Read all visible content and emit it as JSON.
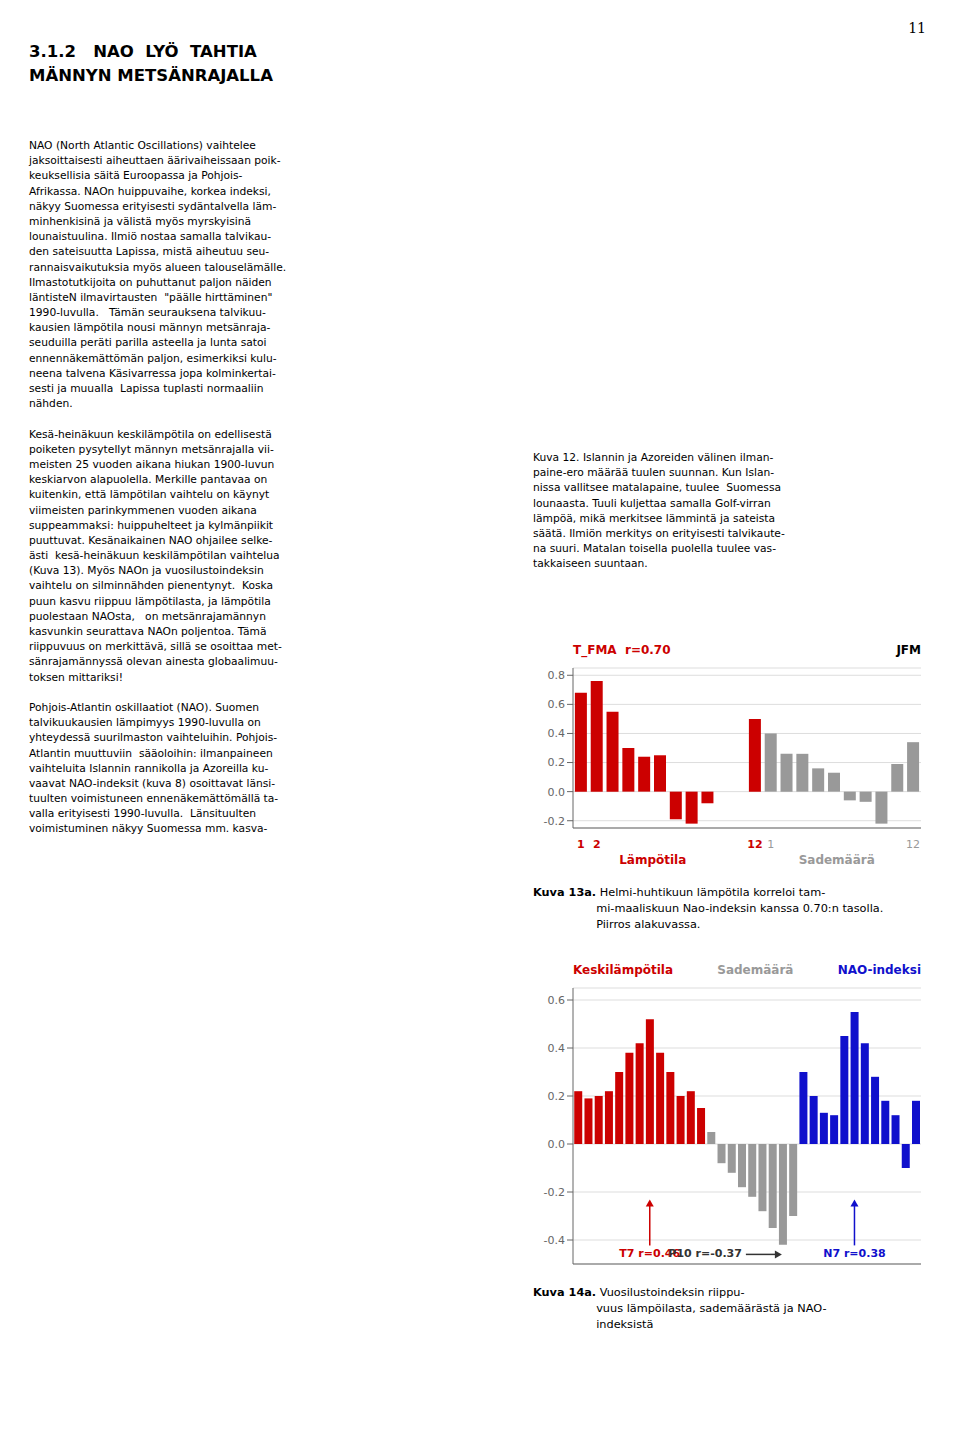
{
  "page_number": "11",
  "title": "3.1.2   NAO  LYÖ  TAHTIA\nMÄNNYN METSÄNRAJALLA",
  "body_text": "NAO (North Atlantic Oscillations) vaihtelee\njaksoittaisesti aiheuttaen äärivaiheissaan poik-\nkeuksellisia säitä Euroopassa ja Pohjois-\nAfrikassa. NAOn huippuvaihe, korkea indeksi,\nnäkyy Suomessa erityisesti sydäntalvella läm-\nminhenkisinä ja välistä myös myrskyisinä\nlounaistuulina. Ilmiö nostaa samalla talvikau-\nden sateisuutta Lapissa, mistä aiheutuu seu-\nrannaisvaikutuksia myös alueen talouselämälle.\nIlmastotutkijoita on puhuttanut paljon näiden\nläntisteN ilmavirtausten  \"päälle hirttäminen\"\n1990-luvulla.   Tämän seurauksena talvikuu-\nkausien lämpötila nousi männyn metsänraja-\nseuduilla peräti parilla asteella ja lunta satoi\nennennäkemättömän paljon, esimerkiksi kulu-\nneena talvena Käsivarressa jopa kolminkertai-\nsesti ja muualla  Lapissa tuplasti normaaliin\nnähden.\n\nKesä-heinäkuun keskilämpötila on edellisestä\npoiketen pysytellyt männyn metsänrajalla vii-\nmeisten 25 vuoden aikana hiukan 1900-luvun\nkeskiarvon alapuolella. Merkille pantavaa on\nkuitenkin, että lämpötilan vaihtelu on käynyt\nviimeisten parinkymmenen vuoden aikana\nsuppeammaksi: huippuhelteet ja kylmänpiikit\npuuttuvat. Kesänaikainen NAO ohjailee selke-\nästi  kesä-heinäkuun keskilämpötilan vaihtelua\n(Kuva 13). Myös NAOn ja vuosilustoindeksin\nvaihtelu on silminnähden pienentynyt.  Koska\npuun kasvu riippuu lämpötilasta, ja lämpötila\npuolestaan NAOsta,   on metsänrajamännyn\nkasvunkin seurattava NAOn poljentoa. Tämä\nriippuvuus on merkittävä, sillä se osoittaa met-\nsänrajamännyssä olevan ainesta globaalimuu-\ntoksen mittariksi!\n\nPohjois-Atlantin oskillaatiot (NAO). Suomen\ntalvikuukausien lämpimyys 1990-luvulla on\nyhteydessä suurilmaston vaihteluihin. Pohjois-\nAtlantin muuttuviin  sääoloihin: ilmanpaineen\nvaihteluita Islannin rannikolla ja Azoreilla ku-\nvaavat NAO-indeksit (kuva 8) osoittavat länsi-\ntuulten voimistuneen ennenäkemättömällä ta-\nvalla erityisesti 1990-luvulla.  Länsituulten\nvoimistuminen näkyy Suomessa mm. kasva-",
  "caption": "Kuva 12. Islannin ja Azoreiden välinen ilman-\npaine-ero määrää tuulen suunnan. Kun Islan-\nnissa vallitsee matalapaine, tuulee  Suomessa\nlounaasta. Tuuli kuljettaa samalla Golf-virran\nlämpöä, mikä merkitsee lämmintä ja sateista\nsäätä. Ilmiön merkitys on erityisesti talvikaute-\nna suuri. Matalan toisella puolella tuulee vas-\ntakkaiseen suuntaan.",
  "chart_data": [
    {
      "type": "bar",
      "categories": [
        "1",
        "2",
        null,
        null,
        null,
        null,
        null,
        null,
        null,
        null,
        null,
        "12",
        "1",
        null,
        null,
        null,
        null,
        null,
        null,
        null,
        null,
        "12"
      ],
      "series": [
        {
          "name": "Lämpötila",
          "color": "#cc0000",
          "values": [
            0.68,
            0.76,
            0.55,
            0.3,
            0.24,
            0.25,
            -0.19,
            -0.22,
            -0.08,
            null,
            null,
            0.5,
            null,
            null,
            null,
            null,
            null,
            null,
            null,
            null,
            null,
            null
          ]
        },
        {
          "name": "Sademäärä",
          "color": "#999999",
          "values": [
            null,
            null,
            null,
            null,
            null,
            null,
            null,
            null,
            null,
            null,
            null,
            null,
            0.4,
            0.26,
            0.26,
            0.16,
            0.13,
            -0.06,
            -0.07,
            -0.22,
            0.19,
            0.34
          ]
        }
      ],
      "ylim": [
        -0.25,
        0.85
      ],
      "yticks": [
        -0.2,
        {
          "value": 0,
          "label": "0.0"
        },
        0.2,
        0.4,
        0.6,
        0.8
      ],
      "grid": true,
      "legend": "bottom",
      "annotations": [
        {
          "text": "T_FMA  r=0.70",
          "color": "#cc0000"
        },
        {
          "text": "JFM",
          "color": "#000000"
        }
      ],
      "caption_bold": "Kuva 13a.",
      "caption": " Helmi-huhtikuun lämpötila korreloi tam-\nmi-maaliskuun Nao-indeksin kanssa 0.70:n tasolla.\nPiirros alakuvassa."
    },
    {
      "type": "bar",
      "categories": [
        null,
        null,
        null,
        null,
        null,
        null,
        null,
        null,
        null,
        null,
        null,
        null,
        null,
        null,
        null,
        null,
        null,
        null,
        null,
        null,
        null,
        null,
        null,
        null,
        null,
        null,
        null,
        null,
        null,
        null,
        null,
        null,
        null,
        null
      ],
      "series": [
        {
          "name": "Keskilämpötila",
          "color": "#cc0000",
          "values": [
            0.22,
            0.19,
            0.2,
            0.22,
            0.3,
            0.38,
            0.42,
            0.52,
            0.38,
            0.3,
            0.2,
            0.22,
            0.15,
            null,
            null,
            null,
            null,
            null,
            null,
            null,
            null,
            null,
            null,
            null,
            null,
            null,
            null,
            null,
            null,
            null,
            null,
            null,
            null,
            null
          ]
        },
        {
          "name": "Sademäärä",
          "color": "#999999",
          "values": [
            null,
            null,
            null,
            null,
            null,
            null,
            null,
            null,
            null,
            null,
            null,
            null,
            null,
            0.05,
            -0.08,
            -0.12,
            -0.18,
            -0.22,
            -0.28,
            -0.35,
            -0.42,
            -0.3,
            null,
            null,
            null,
            null,
            null,
            null,
            null,
            null,
            null,
            null,
            null,
            null
          ]
        },
        {
          "name": "NAO-indeksi",
          "color": "#1010cc",
          "values": [
            null,
            null,
            null,
            null,
            null,
            null,
            null,
            null,
            null,
            null,
            null,
            null,
            null,
            null,
            null,
            null,
            null,
            null,
            null,
            null,
            null,
            null,
            0.3,
            0.2,
            0.13,
            0.12,
            0.45,
            0.55,
            0.42,
            0.28,
            0.18,
            0.12,
            -0.1,
            0.18
          ]
        }
      ],
      "ylim": [
        -0.5,
        0.65
      ],
      "yticks": [
        -0.4,
        -0.2,
        {
          "value": 0,
          "label": "0.0"
        },
        0.2,
        0.4,
        0.6
      ],
      "grid": true,
      "legend": "top",
      "tick_labels": "y",
      "annotations": [
        {
          "text": "T7 r=0.46",
          "color": "#cc0000",
          "x": 8,
          "y": -0.46,
          "arrow": "up"
        },
        {
          "text": "P10 r=-0.37",
          "color": "#333333",
          "x": 17,
          "y": -0.46,
          "arrow": "right"
        },
        {
          "text": "N7 r=0.38",
          "color": "#1010cc",
          "x": 28,
          "y": -0.46,
          "arrow": "up"
        }
      ],
      "caption_bold": "Kuva 14a.",
      "caption": " Vuosilustoindeksin riippu-\nvuus lämpöilasta, sademäärästä ja NAO-\nindeksistä"
    }
  ]
}
